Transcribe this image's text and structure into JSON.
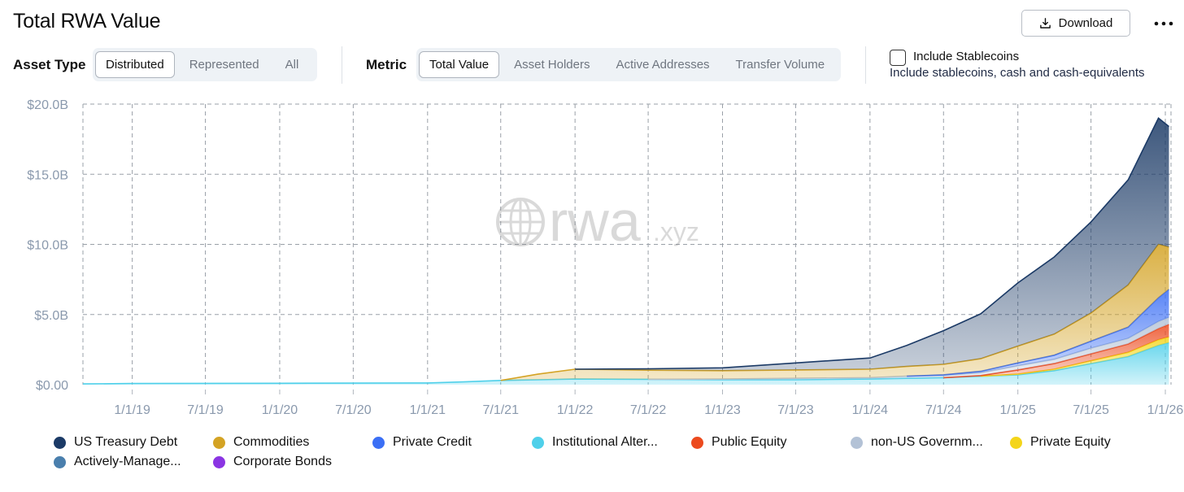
{
  "header": {
    "title": "Total RWA Value",
    "download_label": "Download"
  },
  "filters": {
    "asset_type_label": "Asset Type",
    "asset_type_options": [
      "Distributed",
      "Represented",
      "All"
    ],
    "asset_type_selected": "Distributed",
    "metric_label": "Metric",
    "metric_options": [
      "Total Value",
      "Asset Holders",
      "Active Addresses",
      "Transfer Volume"
    ],
    "metric_selected": "Total Value",
    "stablecoins_label": "Include Stablecoins",
    "stablecoins_desc": "Include stablecoins, cash and cash-equivalents",
    "stablecoins_checked": false
  },
  "watermark": {
    "brand": "rwa",
    "suffix": ".xyz"
  },
  "legend": [
    {
      "label": "US Treasury Debt",
      "color": "#1b3a66"
    },
    {
      "label": "Commodities",
      "color": "#d4a324"
    },
    {
      "label": "Private Credit",
      "color": "#3b6ff5"
    },
    {
      "label": "Institutional Alter...",
      "color": "#4fd0ea"
    },
    {
      "label": "Public Equity",
      "color": "#ec4a1e"
    },
    {
      "label": "non-US Governm...",
      "color": "#b3c2d6"
    },
    {
      "label": "Private Equity",
      "color": "#f4d51a"
    },
    {
      "label": "Actively-Manage...",
      "color": "#4a7fad"
    },
    {
      "label": "Corporate Bonds",
      "color": "#8b35e3"
    }
  ],
  "chart_data": {
    "type": "area",
    "stacked": true,
    "ylim": [
      0,
      20
    ],
    "y_unit": "$B",
    "y_ticks": [
      0,
      5,
      10,
      15,
      20
    ],
    "y_tick_labels": [
      "$0.00",
      "$5.0B",
      "$10.0B",
      "$15.0B",
      "$20.0B"
    ],
    "x_range": [
      "2018-09-01",
      "2026-01-15"
    ],
    "x_ticks": [
      "2019-01-01",
      "2019-07-01",
      "2020-01-01",
      "2020-07-01",
      "2021-01-01",
      "2021-07-01",
      "2022-01-01",
      "2022-07-01",
      "2023-01-01",
      "2023-07-01",
      "2024-01-01",
      "2024-07-01",
      "2025-01-01",
      "2025-07-01",
      "2026-01-01"
    ],
    "x_tick_labels": [
      "1/1/19",
      "7/1/19",
      "1/1/20",
      "7/1/20",
      "1/1/21",
      "7/1/21",
      "1/1/22",
      "7/1/22",
      "1/1/23",
      "7/1/23",
      "1/1/24",
      "7/1/24",
      "1/1/25",
      "7/1/25",
      "1/1/26"
    ],
    "grid": true,
    "legend_position": "bottom",
    "x": [
      "2018-09-01",
      "2019-01-01",
      "2020-01-01",
      "2021-01-01",
      "2021-04-01",
      "2021-07-01",
      "2021-10-01",
      "2022-01-01",
      "2022-07-01",
      "2023-01-01",
      "2023-07-01",
      "2024-01-01",
      "2024-04-01",
      "2024-07-01",
      "2024-10-01",
      "2025-01-01",
      "2025-04-01",
      "2025-07-01",
      "2025-10-01",
      "2025-12-15",
      "2026-01-10"
    ],
    "series": [
      {
        "name": "Institutional Alter...",
        "color": "#4fd0ea",
        "values": [
          0.05,
          0.08,
          0.1,
          0.12,
          0.2,
          0.3,
          0.35,
          0.4,
          0.38,
          0.35,
          0.35,
          0.4,
          0.45,
          0.5,
          0.6,
          0.7,
          1.0,
          1.5,
          2.0,
          2.8,
          3.0
        ]
      },
      {
        "name": "Private Equity",
        "color": "#f4d51a",
        "values": [
          0,
          0,
          0,
          0,
          0,
          0,
          0,
          0,
          0,
          0,
          0,
          0,
          0,
          0,
          0,
          0.05,
          0.1,
          0.2,
          0.3,
          0.4,
          0.4
        ]
      },
      {
        "name": "Public Equity",
        "color": "#ec4a1e",
        "values": [
          0,
          0,
          0,
          0,
          0,
          0,
          0,
          0,
          0,
          0,
          0,
          0,
          0,
          0,
          0.05,
          0.3,
          0.4,
          0.5,
          0.6,
          0.8,
          0.9
        ]
      },
      {
        "name": "non-US Governm...",
        "color": "#b3c2d6",
        "values": [
          0,
          0,
          0,
          0,
          0,
          0,
          0,
          0,
          0,
          0.05,
          0.1,
          0.1,
          0.15,
          0.15,
          0.2,
          0.3,
          0.3,
          0.4,
          0.4,
          0.5,
          0.5
        ]
      },
      {
        "name": "Private Credit",
        "color": "#3b6ff5",
        "values": [
          0,
          0,
          0,
          0,
          0,
          0,
          0,
          0,
          0,
          0,
          0,
          0,
          0,
          0.05,
          0.1,
          0.2,
          0.3,
          0.5,
          0.8,
          1.7,
          2.0
        ]
      },
      {
        "name": "Commodities",
        "color": "#d4a324",
        "values": [
          0,
          0,
          0,
          0,
          0,
          0,
          0.4,
          0.7,
          0.65,
          0.6,
          0.6,
          0.6,
          0.7,
          0.75,
          0.9,
          1.2,
          1.5,
          2.0,
          3.0,
          3.8,
          3.0
        ]
      },
      {
        "name": "US Treasury Debt",
        "color": "#1b3a66",
        "values": [
          0,
          0,
          0,
          0,
          0,
          0,
          0,
          0,
          0.1,
          0.2,
          0.5,
          0.8,
          1.5,
          2.4,
          3.2,
          4.5,
          5.5,
          6.5,
          7.5,
          9.0,
          8.6
        ]
      }
    ]
  }
}
